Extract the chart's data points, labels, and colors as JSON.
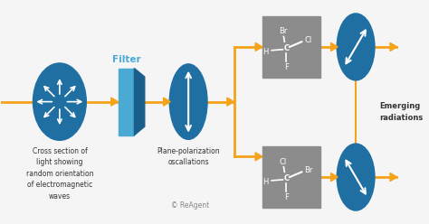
{
  "bg_color": "#f5f5f5",
  "orange": "#F5A31A",
  "blue_oval": "#1F6FA3",
  "gray_box": "#8C8C8C",
  "filter_blue_light": "#4AAAD4",
  "filter_blue_dark": "#1A5F8C",
  "text_dark": "#333333",
  "text_filter": "Filter",
  "text_label1": "Cross section of\nlight showing\nrandom orientation\nof electromagnetic\nwaves",
  "text_label2": "Plane-polarization\noscallations",
  "text_label3": "Emerging\nradiations",
  "text_copyright": "© ReAgent"
}
